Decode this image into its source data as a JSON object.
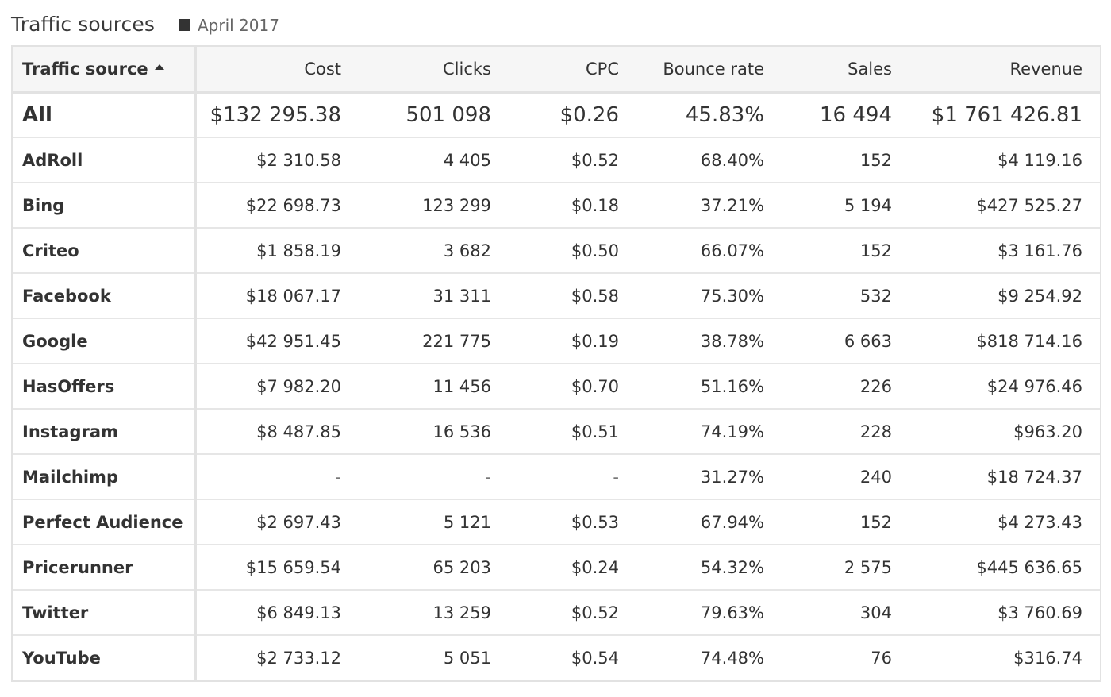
{
  "header": {
    "title": "Traffic sources",
    "legend_label": "April 2017",
    "legend_color": "#333333"
  },
  "table": {
    "columns": [
      "Traffic source",
      "Cost",
      "Clicks",
      "CPC",
      "Bounce rate",
      "Sales",
      "Revenue"
    ],
    "sort": {
      "column": "Traffic source",
      "direction": "ascending"
    },
    "total": {
      "source": "All",
      "cost": "$132 295.38",
      "clicks": "501 098",
      "cpc": "$0.26",
      "bounce_rate": "45.83%",
      "sales": "16 494",
      "revenue": "$1 761 426.81"
    },
    "rows": [
      {
        "source": "AdRoll",
        "cost": "$2 310.58",
        "clicks": "4 405",
        "cpc": "$0.52",
        "bounce_rate": "68.40%",
        "sales": "152",
        "revenue": "$4 119.16"
      },
      {
        "source": "Bing",
        "cost": "$22 698.73",
        "clicks": "123 299",
        "cpc": "$0.18",
        "bounce_rate": "37.21%",
        "sales": "5 194",
        "revenue": "$427 525.27"
      },
      {
        "source": "Criteo",
        "cost": "$1 858.19",
        "clicks": "3 682",
        "cpc": "$0.50",
        "bounce_rate": "66.07%",
        "sales": "152",
        "revenue": "$3 161.76"
      },
      {
        "source": "Facebook",
        "cost": "$18 067.17",
        "clicks": "31 311",
        "cpc": "$0.58",
        "bounce_rate": "75.30%",
        "sales": "532",
        "revenue": "$9 254.92"
      },
      {
        "source": "Google",
        "cost": "$42 951.45",
        "clicks": "221 775",
        "cpc": "$0.19",
        "bounce_rate": "38.78%",
        "sales": "6 663",
        "revenue": "$818 714.16"
      },
      {
        "source": "HasOffers",
        "cost": "$7 982.20",
        "clicks": "11 456",
        "cpc": "$0.70",
        "bounce_rate": "51.16%",
        "sales": "226",
        "revenue": "$24 976.46"
      },
      {
        "source": "Instagram",
        "cost": "$8 487.85",
        "clicks": "16 536",
        "cpc": "$0.51",
        "bounce_rate": "74.19%",
        "sales": "228",
        "revenue": "$963.20"
      },
      {
        "source": "Mailchimp",
        "cost": "-",
        "clicks": "-",
        "cpc": "-",
        "bounce_rate": "31.27%",
        "sales": "240",
        "revenue": "$18 724.37"
      },
      {
        "source": "Perfect Audience",
        "cost": "$2 697.43",
        "clicks": "5 121",
        "cpc": "$0.53",
        "bounce_rate": "67.94%",
        "sales": "152",
        "revenue": "$4 273.43"
      },
      {
        "source": "Pricerunner",
        "cost": "$15 659.54",
        "clicks": "65 203",
        "cpc": "$0.24",
        "bounce_rate": "54.32%",
        "sales": "2 575",
        "revenue": "$445 636.65"
      },
      {
        "source": "Twitter",
        "cost": "$6 849.13",
        "clicks": "13 259",
        "cpc": "$0.52",
        "bounce_rate": "79.63%",
        "sales": "304",
        "revenue": "$3 760.69"
      },
      {
        "source": "YouTube",
        "cost": "$2 733.12",
        "clicks": "5 051",
        "cpc": "$0.54",
        "bounce_rate": "74.48%",
        "sales": "76",
        "revenue": "$316.74"
      }
    ]
  }
}
